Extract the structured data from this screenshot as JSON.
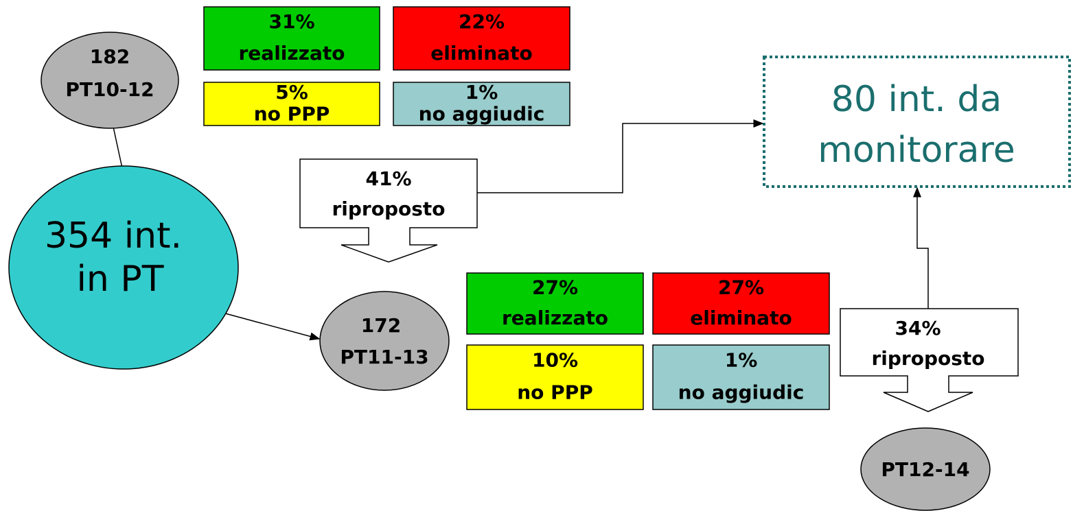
{
  "nodes": [
    {
      "lines": [
        "182",
        "PT10-12"
      ]
    },
    {
      "lines": [
        "354 int.",
        "in PT"
      ]
    },
    {
      "lines": [
        "172",
        "PT11-13"
      ]
    },
    {
      "lines": [
        "PT12-14"
      ]
    }
  ],
  "boxes": [
    {
      "lines": [
        "31%",
        "realizzato"
      ]
    },
    {
      "lines": [
        "22%",
        "eliminato"
      ]
    },
    {
      "lines": [
        "5%",
        "no PPP"
      ]
    },
    {
      "lines": [
        "1%",
        "no aggiudic"
      ]
    },
    {
      "lines": [
        "27%",
        "realizzato"
      ]
    },
    {
      "lines": [
        "27%",
        "eliminato"
      ]
    },
    {
      "lines": [
        "10%",
        "no PPP"
      ]
    },
    {
      "lines": [
        "1%",
        "no aggiudic"
      ]
    }
  ],
  "callouts": [
    {
      "lines": [
        "41%",
        "riproposto"
      ]
    },
    {
      "lines": [
        "34%",
        "riproposto"
      ]
    }
  ],
  "target": {
    "lines": [
      "80 int. da",
      "monitorare"
    ]
  }
}
